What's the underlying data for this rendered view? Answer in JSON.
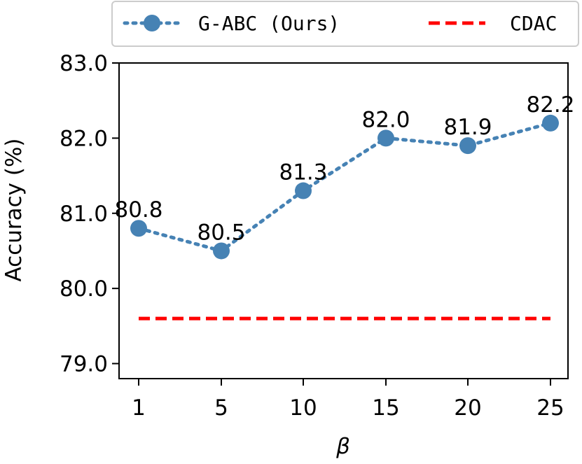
{
  "chart_data": {
    "type": "line",
    "xlabel": "β",
    "ylabel": "Accuracy (%)",
    "x": [
      1,
      5,
      10,
      15,
      20,
      25
    ],
    "x_tick_labels": [
      "1",
      "5",
      "10",
      "15",
      "20",
      "25"
    ],
    "ylim": [
      78.8,
      83.0
    ],
    "y_ticks": [
      79.0,
      80.0,
      81.0,
      82.0,
      83.0
    ],
    "y_tick_labels": [
      "79.0",
      "80.0",
      "81.0",
      "82.0",
      "83.0"
    ],
    "grid": false,
    "legend_position": "top",
    "series": [
      {
        "name": "G-ABC (Ours)",
        "values": [
          80.8,
          80.5,
          81.3,
          82.0,
          81.9,
          82.2
        ],
        "labels": [
          "80.8",
          "80.5",
          "81.3",
          "82.0",
          "81.9",
          "82.2"
        ],
        "color": "#4682b4",
        "style": "dotted-with-markers"
      },
      {
        "name": "CDAC",
        "values": [
          79.6,
          79.6,
          79.6,
          79.6,
          79.6,
          79.6
        ],
        "color": "#ff0000",
        "style": "dashed"
      }
    ]
  }
}
